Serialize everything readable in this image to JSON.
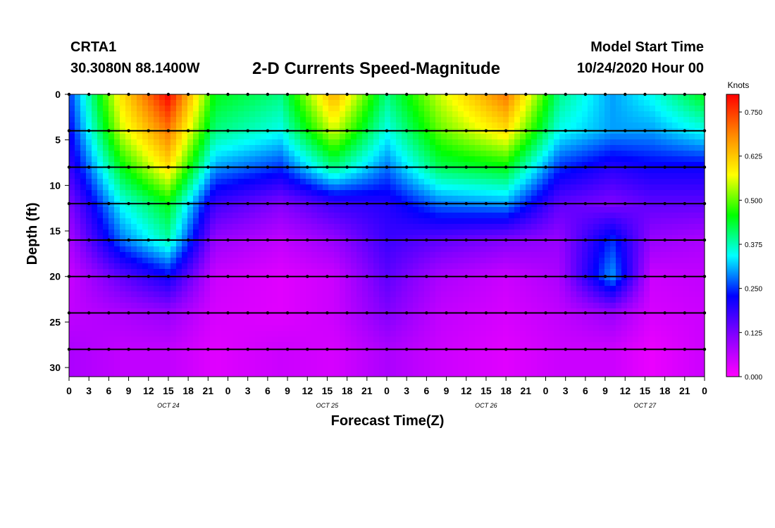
{
  "header": {
    "station": "CRTA1",
    "coords": "30.3080N 88.1400W",
    "title": "2-D Currents Speed-Magnitude",
    "model_start_label": "Model Start Time",
    "model_start_value": "10/24/2020 Hour 00"
  },
  "chart_data": {
    "type": "heatmap",
    "title": "2-D Currents Speed-Magnitude",
    "xlabel": "Forecast Time(Z)",
    "ylabel": "Depth (ft)",
    "x_ticks": [
      "0",
      "3",
      "6",
      "9",
      "12",
      "15",
      "18",
      "21",
      "0",
      "3",
      "6",
      "9",
      "12",
      "15",
      "18",
      "21",
      "0",
      "3",
      "6",
      "9",
      "12",
      "15",
      "18",
      "21",
      "0",
      "3",
      "6",
      "9",
      "12",
      "15",
      "18",
      "21",
      "0"
    ],
    "day_labels": [
      "OCT 24",
      "OCT 25",
      "OCT 26",
      "OCT 27"
    ],
    "y_ticks": [
      "0",
      "5",
      "10",
      "15",
      "20",
      "25",
      "30"
    ],
    "ylim": [
      0,
      31
    ],
    "xlim_hours": [
      0,
      96
    ],
    "colorbar": {
      "label": "Knots",
      "ticks": [
        "0.000",
        "0.125",
        "0.250",
        "0.375",
        "0.500",
        "0.625",
        "0.750"
      ],
      "range": [
        0,
        0.8
      ],
      "colors": [
        "#ff00ff",
        "#8800ff",
        "#0000ff",
        "#00ffff",
        "#00ff00",
        "#ffff00",
        "#ff8800",
        "#ff0000"
      ]
    },
    "depths_ft": [
      0,
      4,
      8,
      12,
      16,
      20,
      24,
      28
    ],
    "speed_grid_knots": [
      [
        0.25,
        0.6,
        0.8,
        0.45,
        0.4,
        0.65,
        0.4,
        0.55,
        0.7,
        0.4,
        0.3,
        0.35,
        0.45
      ],
      [
        0.22,
        0.55,
        0.7,
        0.4,
        0.35,
        0.55,
        0.35,
        0.5,
        0.6,
        0.35,
        0.3,
        0.3,
        0.35
      ],
      [
        0.18,
        0.45,
        0.6,
        0.3,
        0.25,
        0.4,
        0.28,
        0.42,
        0.45,
        0.25,
        0.2,
        0.22,
        0.22
      ],
      [
        0.12,
        0.35,
        0.45,
        0.18,
        0.12,
        0.18,
        0.2,
        0.28,
        0.3,
        0.15,
        0.12,
        0.15,
        0.15
      ],
      [
        0.08,
        0.28,
        0.38,
        0.1,
        0.06,
        0.1,
        0.18,
        0.15,
        0.12,
        0.1,
        0.25,
        0.1,
        0.08
      ],
      [
        0.05,
        0.15,
        0.22,
        0.05,
        0.03,
        0.05,
        0.15,
        0.08,
        0.05,
        0.08,
        0.3,
        0.05,
        0.06
      ],
      [
        0.06,
        0.08,
        0.1,
        0.04,
        0.03,
        0.05,
        0.12,
        0.06,
        0.04,
        0.06,
        0.1,
        0.04,
        0.05
      ],
      [
        0.08,
        0.06,
        0.06,
        0.03,
        0.05,
        0.04,
        0.08,
        0.05,
        0.03,
        0.05,
        0.05,
        0.02,
        0.05
      ]
    ],
    "grid_hours": [
      0,
      8,
      15,
      22,
      32,
      40,
      48,
      56,
      66,
      74,
      82,
      88,
      96
    ],
    "vectors_spacing_hours": 3
  }
}
